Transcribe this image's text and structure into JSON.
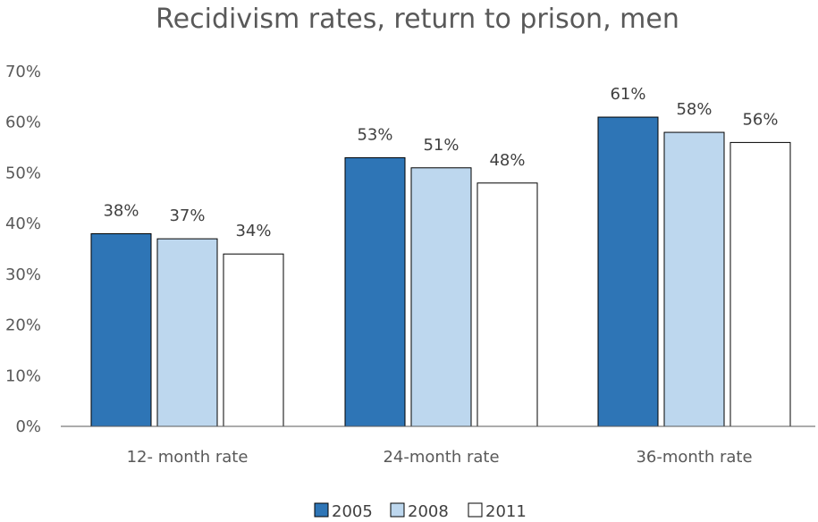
{
  "chart_data": {
    "type": "bar",
    "title": "Recidivism rates, return to prison, men",
    "categories": [
      "12- month rate",
      "24-month rate",
      "36-month rate"
    ],
    "series": [
      {
        "name": "2005",
        "values": [
          38,
          53,
          61
        ],
        "labels": [
          "38%",
          "53%",
          "61%"
        ],
        "color": "#2E75B6"
      },
      {
        "name": "2008",
        "values": [
          37,
          51,
          58
        ],
        "labels": [
          "37%",
          "51%",
          "58%"
        ],
        "color": "#BDD7EE"
      },
      {
        "name": "2011",
        "values": [
          34,
          48,
          56
        ],
        "labels": [
          "34%",
          "48%",
          "56%"
        ],
        "color": "#FFFFFF"
      }
    ],
    "yticks": [
      {
        "value": 0,
        "label": "0%"
      },
      {
        "value": 10,
        "label": "10%"
      },
      {
        "value": 20,
        "label": "20%"
      },
      {
        "value": 30,
        "label": "30%"
      },
      {
        "value": 40,
        "label": "40%"
      },
      {
        "value": 50,
        "label": "50%"
      },
      {
        "value": 60,
        "label": "60%"
      },
      {
        "value": 70,
        "label": "70%"
      }
    ],
    "ylim": [
      0,
      70
    ],
    "grid": false,
    "legend_position": "bottom",
    "xlabel": "",
    "ylabel": ""
  }
}
